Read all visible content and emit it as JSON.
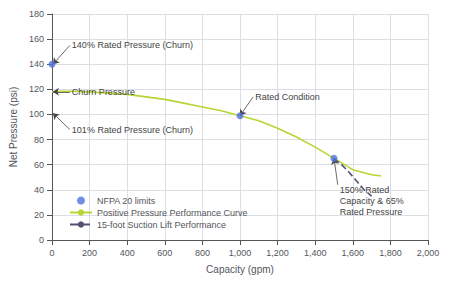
{
  "chart_data": {
    "type": "line",
    "xlabel": "Capacity (gpm)",
    "ylabel": "Net Pressure (psi)",
    "xlim": [
      0,
      2000
    ],
    "ylim": [
      0,
      180
    ],
    "xticks": [
      0,
      200,
      400,
      600,
      800,
      {
        "value": 1000,
        "label": "1,000"
      },
      {
        "value": 1200,
        "label": "1,200"
      },
      {
        "value": 1400,
        "label": "1,400"
      },
      {
        "value": 1600,
        "label": "1,600"
      },
      {
        "value": 1800,
        "label": "1,800"
      },
      {
        "value": 2000,
        "label": "2,000"
      }
    ],
    "yticks": [
      0,
      20,
      40,
      60,
      80,
      100,
      120,
      140,
      160,
      180
    ],
    "grid": true,
    "legend": "lower left",
    "series": [
      {
        "name": "NFPA 20 limits",
        "type": "scatter",
        "marker": "circle",
        "x": [
          0,
          1000,
          1500
        ],
        "values": [
          140,
          99,
          65
        ]
      },
      {
        "name": "Positive Pressure Performance Curve",
        "type": "line",
        "line_style": "solid",
        "x": [
          0,
          50,
          100,
          200,
          300,
          400,
          500,
          600,
          700,
          800,
          900,
          1000,
          1100,
          1200,
          1300,
          1400,
          1500,
          1600,
          1700,
          1750
        ],
        "values": [
          118,
          118.5,
          118.5,
          118,
          117,
          116,
          114,
          112,
          109,
          106,
          103,
          99,
          95,
          89,
          82,
          74,
          65,
          56,
          52,
          51
        ]
      },
      {
        "name": "15-foot Suction Lift Performance",
        "type": "line",
        "line_style": "dashed",
        "x": [
          1500,
          1540,
          1580,
          1620,
          1660,
          1700
        ],
        "values": [
          65,
          60,
          54,
          47,
          40,
          35
        ]
      }
    ],
    "annotations": [
      {
        "text": "140% Rated Pressure (Churn)",
        "x": 5,
        "y": 140,
        "text_x": 95,
        "text_y": 155
      },
      {
        "text": "Churn Pressure",
        "x": 5,
        "y": 118,
        "text_x": 95,
        "text_y": 118
      },
      {
        "text": "101% Rated Pressure (Churn)",
        "x": 5,
        "y": 101,
        "text_x": 95,
        "text_y": 88
      },
      {
        "text": "Rated Condition",
        "x": 1000,
        "y": 99,
        "text_x": 1070,
        "text_y": 114
      },
      {
        "text": "150% Rated\nCapacity & 65%\nRated Pressure",
        "x": 1500,
        "y": 65,
        "text_x": 1520,
        "text_y": 44
      }
    ]
  }
}
